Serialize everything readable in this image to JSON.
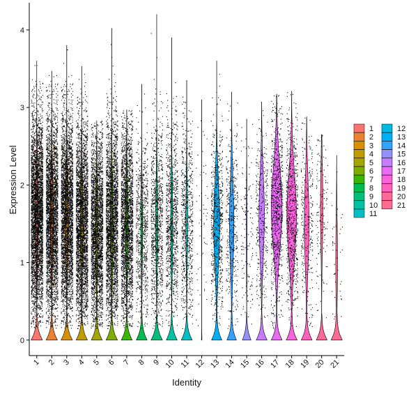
{
  "chart_data": {
    "type": "violin",
    "xlabel": "Identity",
    "ylabel": "Expression Level",
    "ylim": [
      -0.2,
      4.35
    ],
    "yticks": [
      0,
      1,
      2,
      3,
      4
    ],
    "grid": false,
    "legend_position": "right",
    "legend_columns": 2,
    "categories": [
      "1",
      "2",
      "3",
      "4",
      "5",
      "6",
      "7",
      "8",
      "9",
      "10",
      "11",
      "12",
      "13",
      "14",
      "15",
      "16",
      "17",
      "18",
      "19",
      "20",
      "21"
    ],
    "colors": [
      "#F8766D",
      "#EA8331",
      "#D89000",
      "#C09B00",
      "#A3A500",
      "#7CAE00",
      "#39B600",
      "#00BB4E",
      "#00BF7D",
      "#00C1A3",
      "#00BFC4",
      "#00BAE0",
      "#00B0F6",
      "#35A2FF",
      "#9590FF",
      "#C77CFF",
      "#E76BF3",
      "#FA62DB",
      "#FF62BC",
      "#FF6A98",
      "#FF6C91"
    ],
    "series": [
      {
        "name": "1",
        "max": 3.6,
        "zero_width": 0.42,
        "body_width": 0.1,
        "body_center": 1.6,
        "points": 4000
      },
      {
        "name": "2",
        "max": 3.47,
        "zero_width": 0.42,
        "body_width": 0.1,
        "body_center": 1.6,
        "points": 3800
      },
      {
        "name": "3",
        "max": 3.8,
        "zero_width": 0.42,
        "body_width": 0.1,
        "body_center": 1.6,
        "points": 3600
      },
      {
        "name": "4",
        "max": 3.53,
        "zero_width": 0.42,
        "body_width": 0.09,
        "body_center": 1.5,
        "points": 3300
      },
      {
        "name": "5",
        "max": 2.83,
        "zero_width": 0.4,
        "body_width": 0.08,
        "body_center": 1.4,
        "points": 3000
      },
      {
        "name": "6",
        "max": 4.02,
        "zero_width": 0.42,
        "body_width": 0.09,
        "body_center": 1.5,
        "points": 3000
      },
      {
        "name": "7",
        "max": 2.97,
        "zero_width": 0.4,
        "body_width": 0.08,
        "body_center": 1.5,
        "points": 2600
      },
      {
        "name": "8",
        "max": 3.3,
        "zero_width": 0.4,
        "body_width": 0.06,
        "body_center": 1.4,
        "points": 800
      },
      {
        "name": "9",
        "max": 4.2,
        "zero_width": 0.42,
        "body_width": 0.07,
        "body_center": 1.5,
        "points": 1000
      },
      {
        "name": "10",
        "max": 3.9,
        "zero_width": 0.4,
        "body_width": 0.07,
        "body_center": 1.5,
        "points": 1000
      },
      {
        "name": "11",
        "max": 3.35,
        "zero_width": 0.4,
        "body_width": 0.06,
        "body_center": 1.5,
        "points": 700
      },
      {
        "name": "12",
        "max": 3.1,
        "zero_width": 0.02,
        "body_width": 0.01,
        "body_center": 1.5,
        "points": 60
      },
      {
        "name": "13",
        "max": 3.6,
        "zero_width": 0.38,
        "body_width": 0.2,
        "body_center": 1.5,
        "points": 700
      },
      {
        "name": "14",
        "max": 3.2,
        "zero_width": 0.35,
        "body_width": 0.15,
        "body_center": 1.5,
        "points": 400
      },
      {
        "name": "15",
        "max": 2.85,
        "zero_width": 0.32,
        "body_width": 0.03,
        "body_center": 1.4,
        "points": 150
      },
      {
        "name": "16",
        "max": 3.07,
        "zero_width": 0.4,
        "body_width": 0.18,
        "body_center": 1.6,
        "points": 350
      },
      {
        "name": "17",
        "max": 3.17,
        "zero_width": 0.4,
        "body_width": 0.36,
        "body_center": 1.7,
        "points": 800
      },
      {
        "name": "18",
        "max": 3.21,
        "zero_width": 0.4,
        "body_width": 0.32,
        "body_center": 1.6,
        "points": 700
      },
      {
        "name": "19",
        "max": 2.88,
        "zero_width": 0.4,
        "body_width": 0.16,
        "body_center": 1.5,
        "points": 300
      },
      {
        "name": "20",
        "max": 2.65,
        "zero_width": 0.4,
        "body_width": 0.08,
        "body_center": 1.7,
        "points": 150
      },
      {
        "name": "21",
        "max": 2.38,
        "zero_width": 0.4,
        "body_width": 0.06,
        "body_center": 1.0,
        "points": 50
      }
    ]
  }
}
